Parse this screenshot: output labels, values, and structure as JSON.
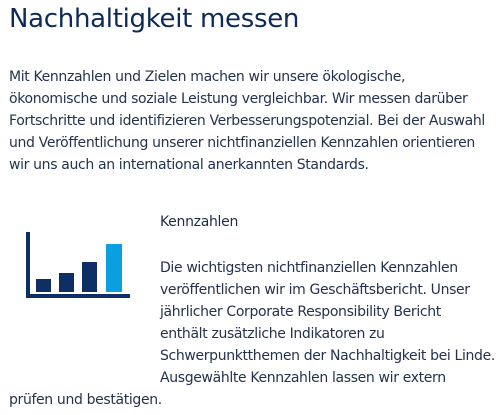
{
  "page": {
    "title": "Nachhaltigkeit messen",
    "intro": "Mit Kennzahlen und Zielen machen wir unsere ökologische, ökonomische und soziale Leistung vergleichbar. Wir messen darüber Fortschritte und identifizieren Verbesserungspotenzial. Bei der Auswahl und Veröffentlichung unserer nichtfinanziellen Kennzahlen orientieren wir uns auch an international anerkannten Standards."
  },
  "section": {
    "icon": "bar-chart-icon",
    "heading": "Kennzahlen",
    "body_lines": [
      "Die wichtigsten nichtfinanziellen Kennzahlen",
      "veröffentlichen wir im Geschäftsbericht. Unser",
      "jährlicher Corporate Responsibility Bericht",
      "enthält zusätzliche Indikatoren zu",
      "Schwerpunktthemen der Nachhaltigkeit bei Linde.",
      "Ausgewählte Kennzahlen lassen wir extern",
      "prüfen und bestätigen."
    ]
  },
  "colors": {
    "text": "#24324f",
    "heading": "#0e2a56",
    "icon_dark": "#0d2f66",
    "icon_light": "#0aa0e0"
  }
}
